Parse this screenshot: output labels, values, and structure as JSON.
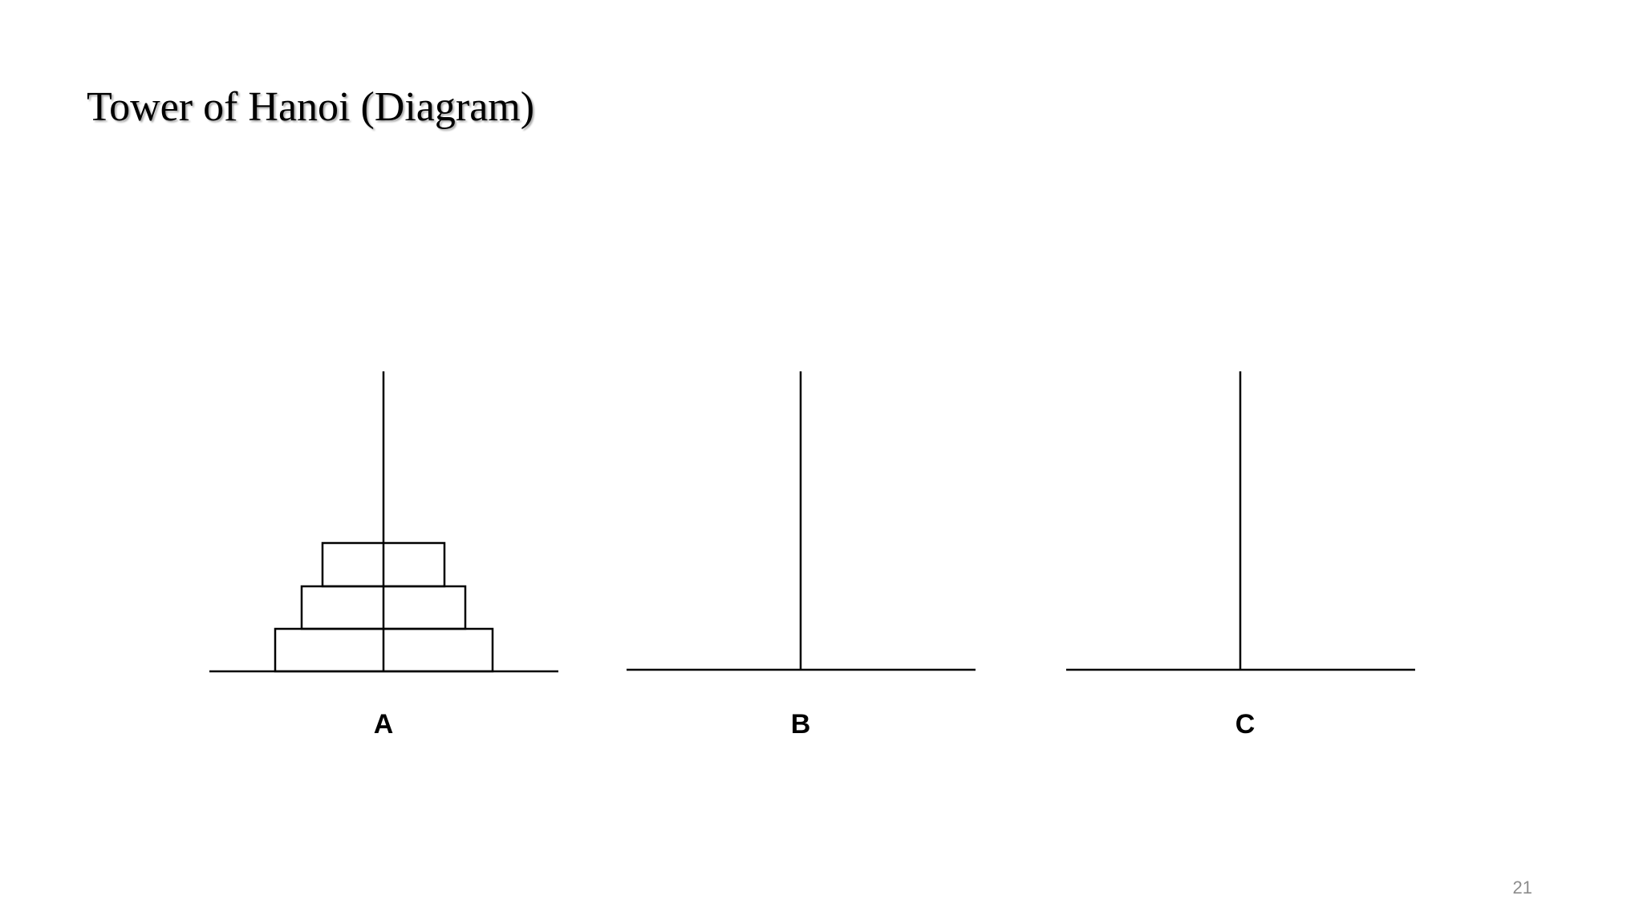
{
  "slide": {
    "title": "Tower of Hanoi (Diagram)",
    "page_number": "21"
  },
  "diagram": {
    "pegs": [
      {
        "label": "A",
        "disks": 3
      },
      {
        "label": "B",
        "disks": 0
      },
      {
        "label": "C",
        "disks": 0
      }
    ],
    "colors": {
      "stroke": "#000000",
      "background": "#ffffff"
    }
  }
}
